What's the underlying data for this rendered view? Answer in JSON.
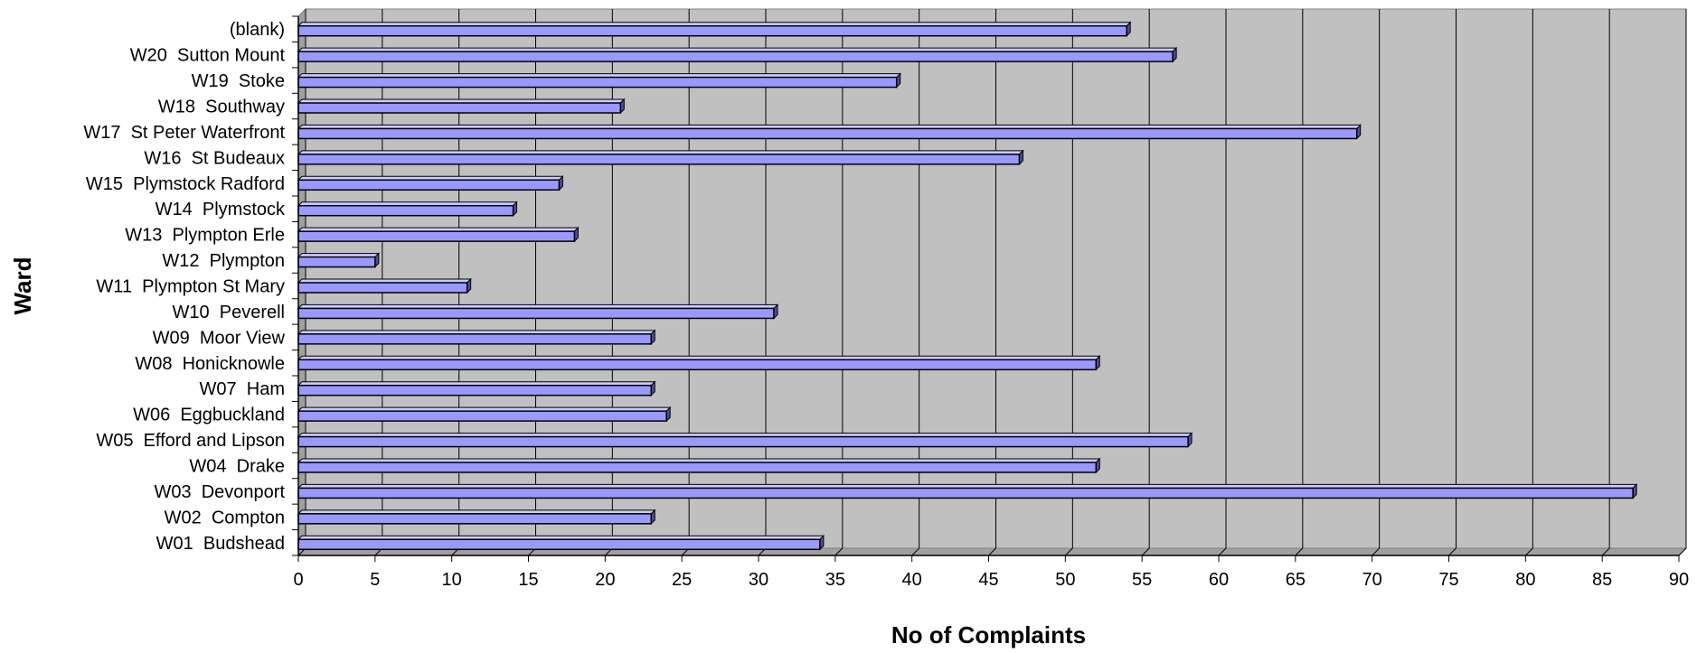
{
  "chart_data": {
    "type": "bar",
    "orientation": "horizontal",
    "title": "",
    "xlabel": "No of Complaints",
    "ylabel": "Ward",
    "xlim": [
      0,
      90
    ],
    "x_ticks": [
      0,
      5,
      10,
      15,
      20,
      25,
      30,
      35,
      40,
      45,
      50,
      55,
      60,
      65,
      70,
      75,
      80,
      85,
      90
    ],
    "grid": "vertical",
    "legend": "none",
    "colors": {
      "plot_background": "#c0c0c0",
      "bar_fill": "#9999ff",
      "bar_side": "#4d4d99",
      "bar_top": "#ccccff",
      "gridline": "#000000"
    },
    "categories": [
      "W01  Budshead",
      "W02  Compton",
      "W03  Devonport",
      "W04  Drake",
      "W05  Efford and Lipson",
      "W06  Eggbuckland",
      "W07  Ham",
      "W08  Honicknowle",
      "W09  Moor View",
      "W10  Peverell",
      "W11  Plympton St Mary",
      "W12  Plympton",
      "W13  Plympton Erle",
      "W14  Plymstock",
      "W15  Plymstock Radford",
      "W16  St Budeaux",
      "W17  St Peter Waterfront",
      "W18  Southway",
      "W19  Stoke",
      "W20  Sutton Mount",
      "(blank)"
    ],
    "values": [
      34,
      23,
      87,
      52,
      58,
      24,
      23,
      52,
      23,
      31,
      11,
      5,
      18,
      14,
      17,
      47,
      69,
      21,
      39,
      57,
      54
    ]
  }
}
